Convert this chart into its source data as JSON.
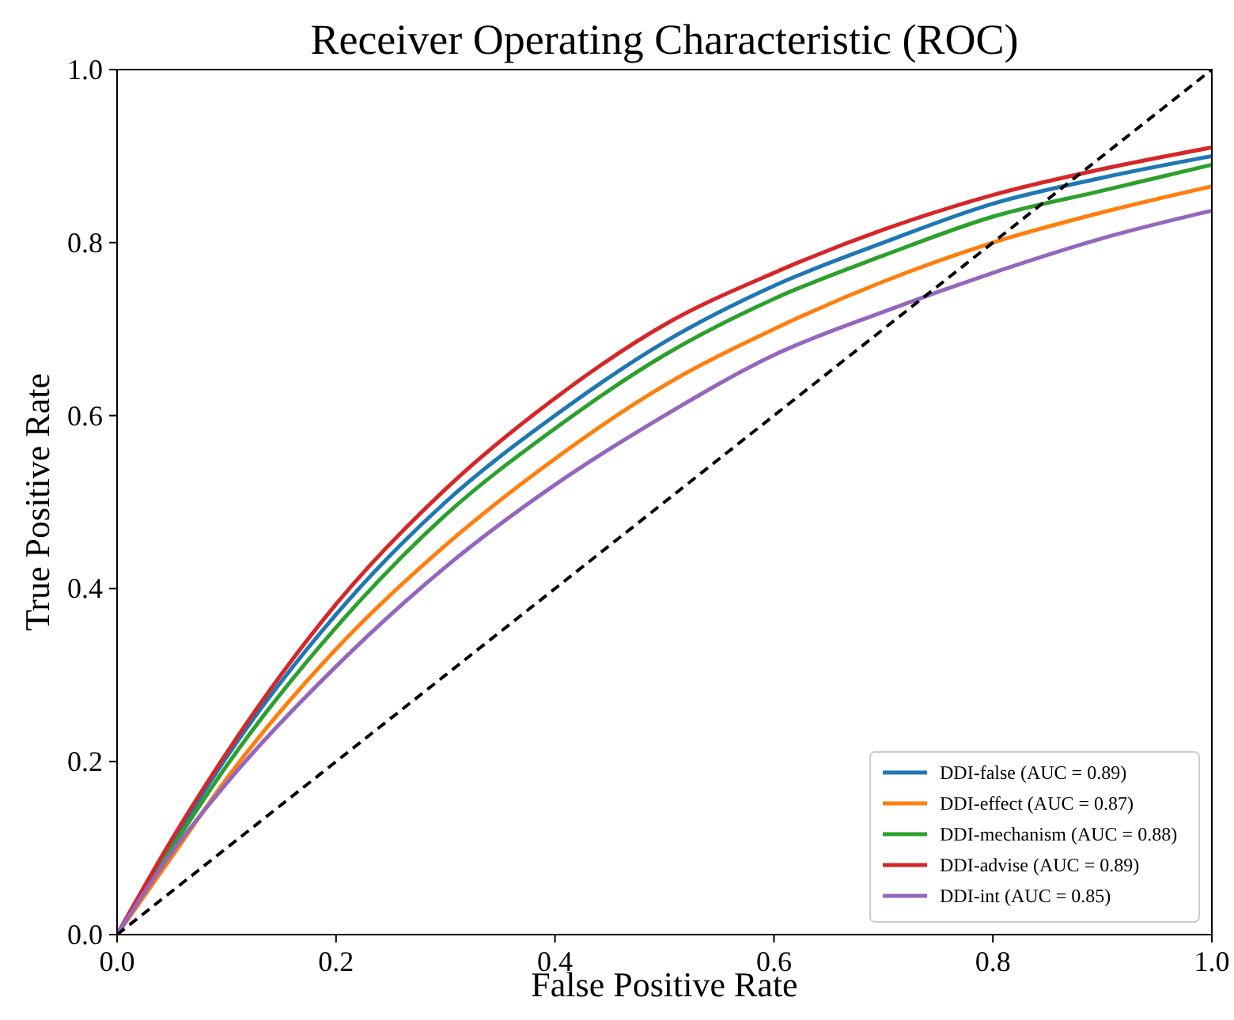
{
  "chart_data": {
    "type": "line",
    "title": "Receiver Operating Characteristic (ROC)",
    "xlabel": "False Positive Rate",
    "ylabel": "True Positive Rate",
    "xlim": [
      0,
      1
    ],
    "ylim": [
      0,
      1
    ],
    "xticks": [
      {
        "value": 0,
        "label": "0.0"
      },
      0.2,
      0.4,
      0.6,
      0.8,
      {
        "value": 1,
        "label": "1.0"
      }
    ],
    "yticks": [
      {
        "value": 0,
        "label": "0.0"
      },
      0.2,
      0.4,
      0.6,
      0.8,
      {
        "value": 1,
        "label": "1.0"
      }
    ],
    "grid": false,
    "legend": "bottom right",
    "marker": "none",
    "series": [
      {
        "name": "DDI-false (AUC = 0.89)",
        "color": "#1f77b4",
        "x": [
          0,
          0.05,
          0.1,
          0.2,
          0.3,
          0.4,
          0.5,
          0.6,
          0.7,
          0.8,
          0.9,
          1
        ],
        "values": [
          0,
          0.105,
          0.205,
          0.37,
          0.5,
          0.6,
          0.685,
          0.75,
          0.8,
          0.845,
          0.875,
          0.9
        ]
      },
      {
        "name": "DDI-effect (AUC = 0.87)",
        "color": "#ff7f0e",
        "x": [
          0,
          0.05,
          0.1,
          0.2,
          0.3,
          0.4,
          0.5,
          0.6,
          0.7,
          0.8,
          0.9,
          1
        ],
        "values": [
          0,
          0.09,
          0.18,
          0.33,
          0.45,
          0.55,
          0.635,
          0.7,
          0.755,
          0.8,
          0.835,
          0.865
        ]
      },
      {
        "name": "DDI-mechanism (AUC = 0.88)",
        "color": "#2ca02c",
        "x": [
          0,
          0.05,
          0.1,
          0.2,
          0.3,
          0.4,
          0.5,
          0.6,
          0.7,
          0.8,
          0.9,
          1
        ],
        "values": [
          0,
          0.1,
          0.195,
          0.355,
          0.485,
          0.585,
          0.67,
          0.735,
          0.785,
          0.83,
          0.86,
          0.89
        ]
      },
      {
        "name": "DDI-advise (AUC = 0.89)",
        "color": "#d62728",
        "x": [
          0,
          0.05,
          0.1,
          0.2,
          0.3,
          0.4,
          0.5,
          0.6,
          0.7,
          0.8,
          0.9,
          1
        ],
        "values": [
          0,
          0.11,
          0.21,
          0.382,
          0.515,
          0.62,
          0.705,
          0.765,
          0.815,
          0.855,
          0.885,
          0.91
        ]
      },
      {
        "name": "DDI-int (AUC = 0.85)",
        "color": "#9467bd",
        "x": [
          0,
          0.05,
          0.1,
          0.2,
          0.3,
          0.4,
          0.5,
          0.6,
          0.7,
          0.8,
          0.9,
          1
        ],
        "values": [
          0,
          0.095,
          0.175,
          0.31,
          0.425,
          0.52,
          0.6,
          0.67,
          0.72,
          0.765,
          0.805,
          0.837
        ]
      },
      {
        "color": "#000000",
        "line_style": "dashed",
        "x": [
          0,
          1
        ],
        "values": [
          0,
          1
        ]
      }
    ]
  }
}
